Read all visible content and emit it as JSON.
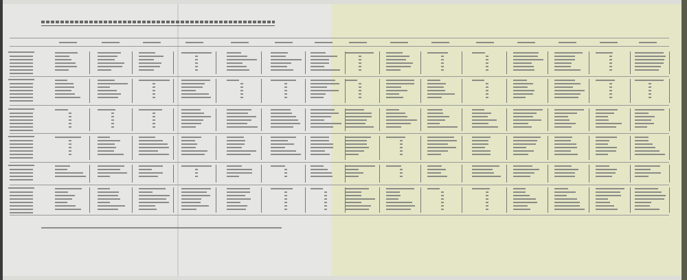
{
  "colors": {
    "left_page": "#e6e6e4",
    "right_page": "#e4e6c6",
    "ink": "#6a6a6a",
    "edge": "#3a3a3a"
  },
  "table": {
    "columns_left_page": 7,
    "columns_right_page": 8,
    "sections": 6
  }
}
